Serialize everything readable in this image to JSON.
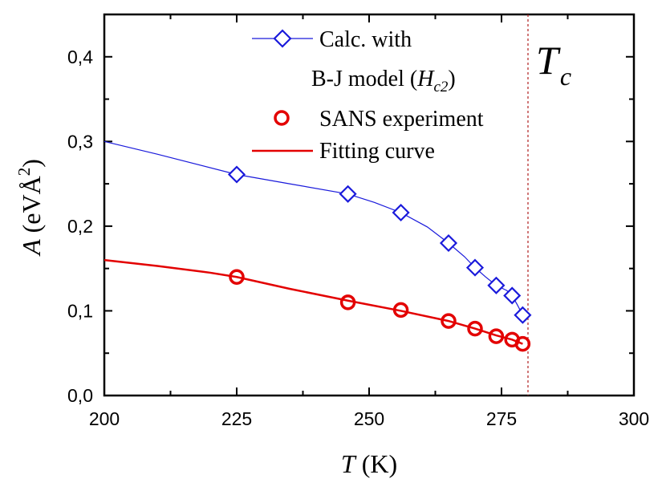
{
  "chart_data": {
    "type": "scatter",
    "xlabel": {
      "italic": "T",
      "rest": " (K)"
    },
    "ylabel": {
      "italic": "A",
      "rest": " (eVÅ",
      "sup": "2",
      "close": ")"
    },
    "xlim": [
      200,
      300
    ],
    "ylim": [
      0,
      0.45
    ],
    "xticks": [
      "200",
      "225",
      "250",
      "275",
      "300"
    ],
    "yticks": [
      "0,0",
      "0,1",
      "0,2",
      "0,3",
      "0,4"
    ],
    "grid": false,
    "legend_position": "top-right",
    "annotation": {
      "main": "T",
      "sub": "c"
    },
    "tc_line_x": 280,
    "series": [
      {
        "key": "calc",
        "legend_line1": "Calc. with",
        "legend_line2_pre": "B-J model (",
        "legend_line2_italic": "H",
        "legend_line2_sub": "c2",
        "legend_line2_post": ")",
        "color": "#1a1adb",
        "marker": "diamond",
        "x": [
          225,
          246,
          256,
          265,
          270,
          274,
          277,
          279
        ],
        "y": [
          0.261,
          0.238,
          0.216,
          0.18,
          0.151,
          0.13,
          0.118,
          0.095
        ]
      },
      {
        "key": "sans",
        "name": "SANS experiment",
        "color": "#e30000",
        "marker": "circle",
        "x": [
          225,
          246,
          256,
          265,
          270,
          274,
          277,
          279
        ],
        "y": [
          0.14,
          0.11,
          0.101,
          0.088,
          0.079,
          0.07,
          0.066,
          0.061
        ]
      },
      {
        "key": "fit",
        "name": "Fitting curve",
        "color": "#e30000",
        "marker": "none"
      }
    ],
    "calc_line": {
      "x": [
        200,
        210,
        225,
        235,
        246,
        251,
        256,
        261,
        265,
        268,
        270,
        272,
        274,
        276,
        277,
        278,
        279
      ],
      "y": [
        0.3,
        0.285,
        0.261,
        0.25,
        0.238,
        0.228,
        0.216,
        0.199,
        0.18,
        0.164,
        0.151,
        0.14,
        0.13,
        0.124,
        0.118,
        0.107,
        0.095
      ]
    },
    "fit_line": {
      "x": [
        200,
        210,
        220,
        225,
        235,
        246,
        256,
        265,
        270,
        274,
        277,
        279
      ],
      "y": [
        0.16,
        0.153,
        0.145,
        0.14,
        0.126,
        0.112,
        0.1,
        0.088,
        0.079,
        0.071,
        0.066,
        0.061
      ]
    }
  }
}
